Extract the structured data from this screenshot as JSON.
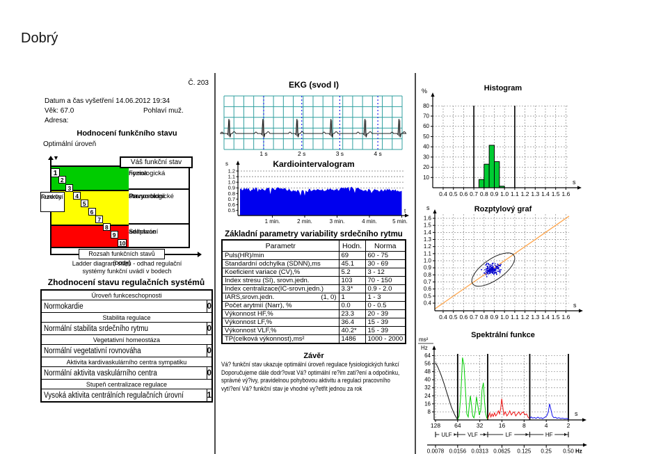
{
  "page": {
    "title": "Dobrý",
    "report_no": "Č. 203"
  },
  "patient": {
    "exam": "Datum a čas vyšetření 14.06.2012 19:34",
    "age": "Věk: 67.0",
    "sex": "Pohlaví muž.",
    "address": "Adresa:"
  },
  "functional": {
    "heading": "Hodnocení funkčního stavu",
    "level": "Optimální úroveň",
    "ladder": {
      "your_state": "Váš funkční stav",
      "zones": [
        {
          "id": "green",
          "color": "#00cc00",
          "lines": [
            "Fyziologická",
            "norma"
          ]
        },
        {
          "id": "yellow",
          "color": "#ffff00",
          "lines": [
            "Prenosologické",
            "stavy",
            "Premorbidní",
            "stavy"
          ]
        },
        {
          "id": "red",
          "color": "#ff0000",
          "lines": [
            "Selhávání",
            "adaptace"
          ]
        }
      ],
      "steps": [
        1,
        2,
        3,
        4,
        5,
        6,
        7,
        8,
        9,
        10
      ],
      "current_step": 1,
      "reserve": [
        "Funkční",
        "rezervy"
      ],
      "axis_box": "Rozsah funkčních stavů (body)",
      "caption": [
        "Ladder diagram států - odhad regulační",
        "systémy funkční uvádí v bodech"
      ]
    }
  },
  "regulation": {
    "heading": "Zhodnocení stavu regulačních systémů",
    "groups": [
      {
        "header": "Úroveň funkceschopnosti",
        "label": "Normokardie",
        "value": "0"
      },
      {
        "header": "Stabilita regulace",
        "label": "Normální stabilita srdečního rytmu",
        "value": "0"
      },
      {
        "header": "Vegetativní homeostáza",
        "label": "Normální vegetativní rovnováha",
        "value": "0"
      },
      {
        "header": "Aktivita kardivaskulárního centra sympatiku",
        "label": "Normální aktivita vaskulárního centra",
        "value": "0"
      },
      {
        "header": "Stupeň centralizace regulace",
        "label": "Vysoká aktivita centrálních regulačních úrovní",
        "value": "1"
      }
    ]
  },
  "parameters": {
    "heading": "Základní parametry variability srdečního rytmu",
    "columns": [
      "Parametr",
      "Hodn.",
      "Norma"
    ],
    "rows": [
      {
        "param": "Puls(HR)/min",
        "value": "69",
        "norm": "60 - 75"
      },
      {
        "param": "Standardní odchylka (SDNN),ms",
        "value": "45.1",
        "norm": "30 - 69"
      },
      {
        "param": "Koeficient variace (CV),%",
        "value": "5.2",
        "norm": "3 - 12"
      },
      {
        "param": "Index stresu (SI), srovn.jedn.",
        "value": "103",
        "norm": "70 - 150"
      },
      {
        "param": "Index centralizace(IC-srovn.jedn.)",
        "value": "3.3*",
        "norm": "0.9 - 2.0"
      },
      {
        "param": "IARS,srovn.jedn.",
        "note": "(1, 0)",
        "value": "1",
        "norm": "1 - 3"
      },
      {
        "param": "Počet arytmií (Narr), %",
        "value": "0.0",
        "norm": "0 - 0.5"
      },
      {
        "param": "Výkonnost HF,%",
        "value": "23.3",
        "norm": "20 - 39"
      },
      {
        "param": "Výkonnost LF,%",
        "value": "36.4",
        "norm": "15 - 39"
      },
      {
        "param": "Výkonnost VLF,%",
        "value": "40.2*",
        "norm": "15 - 39"
      },
      {
        "param": "TP(celková výkonnost),ms²",
        "value": "1486",
        "norm": "1000 - 2000"
      }
    ]
  },
  "conclusion": {
    "heading": "Závěr",
    "lines": [
      "Vá? funkční stav ukazuje optimální úroveň regulace fysiologických funkcí",
      "Doporučujeme dále dodr?ovat Vá? optimální re?im zatí?ení a odpočinku,",
      "správné vý?ivy, pravidelnou pohybovou aktivitu a regulaci pracovního",
      "vytí?ení Vá? funkční stav je vhodné vy?etřit jednou za rok"
    ]
  },
  "chart_data": [
    {
      "id": "ekg",
      "type": "line",
      "title": "EKG (svod I)",
      "x_tick_labels": [
        "1 s",
        "2 s",
        "3 s",
        "4 s"
      ],
      "rr_interval_s": 0.88,
      "beats": 6,
      "grid_color": "#2f9f9f",
      "trace_color": "#222222",
      "second_marker_color": "#2222ee"
    },
    {
      "id": "kardiointervalogram",
      "type": "area",
      "title": "Kardiointervalogram",
      "ylabel": "s",
      "xlabel": "t",
      "y_ticks": [
        "1.2",
        "1.1",
        "1.0",
        "0.9",
        "0.8",
        "0.7",
        "0.6",
        "0.5"
      ],
      "x_tick_labels": [
        "1 min.",
        "2 min.",
        "3 min.",
        "4 min.",
        "5 min."
      ],
      "mean_rr_s": 0.87,
      "rr_range_s": [
        0.76,
        0.96
      ],
      "fill_color": "#0000ee"
    },
    {
      "id": "histogram",
      "type": "bar",
      "title": "Histogram",
      "ylabel": "%",
      "xlabel": "s",
      "x_ticks": [
        "0.4",
        "0.5",
        "0.6",
        "0.7",
        "0.8",
        "0.9",
        "1.0",
        "1.1",
        "1.2",
        "1.3",
        "1.4",
        "1.5",
        "1.6"
      ],
      "y_ticks": [
        10,
        20,
        30,
        40,
        50,
        60,
        70,
        80
      ],
      "bin_width_s": 0.05,
      "bars": [
        {
          "x": 0.75,
          "pct": 8
        },
        {
          "x": 0.8,
          "pct": 23
        },
        {
          "x": 0.85,
          "pct": 41.5
        },
        {
          "x": 0.9,
          "pct": 25.5
        },
        {
          "x": 0.95,
          "pct": 1.5
        }
      ],
      "limit_lines_s": [
        0.7,
        1.1
      ],
      "bar_color": "#00cc33"
    },
    {
      "id": "poincare",
      "type": "scatter",
      "title": "Rozptylový graf",
      "xlabel": "s",
      "ylabel": "s",
      "x_ticks": [
        "0.4",
        "0.5",
        "0.6",
        "0.7",
        "0.8",
        "0.9",
        "1.0",
        "1.1",
        "1.2",
        "1.3",
        "1.4",
        "1.5",
        "1.6"
      ],
      "y_ticks": [
        "1.6",
        "1.5",
        "1.4",
        "1.3",
        "1.2",
        "1.1",
        "1.0",
        "0.9",
        "0.8",
        "0.7",
        "0.6",
        "0.5",
        "0.4"
      ],
      "cluster": {
        "mean_s": 0.872,
        "sd_s": 0.04,
        "n": 135
      },
      "ellipse": {
        "cx_s": 0.89,
        "cy_s": 0.875
      },
      "point_color": "#0000cc",
      "diagonal_color": "#ffa64d"
    },
    {
      "id": "spectral",
      "type": "line",
      "title": "Spektrální funkce",
      "ylabel_num": "ms²",
      "ylabel_den": "Hz",
      "period_unit": "s",
      "freq_unit": "Hz",
      "y_ticks": [
        8,
        16,
        24,
        32,
        40,
        48,
        56,
        64
      ],
      "period_ticks_s": [
        "128",
        "64",
        "32",
        "16",
        "8",
        "4",
        "2"
      ],
      "freq_ticks_hz": [
        "0.0078",
        "0.0156",
        "0.0313",
        "0.0625",
        "0.125",
        "0.25",
        "0.50"
      ],
      "bands": [
        {
          "name": "ULF",
          "from_s": 128,
          "to_s": 64
        },
        {
          "name": "VLF",
          "from_s": 64,
          "to_s": 25
        },
        {
          "name": "LF",
          "from_s": 25,
          "to_s": 6.7
        },
        {
          "name": "HF",
          "from_s": 6.7,
          "to_s": 2
        }
      ],
      "series": [
        {
          "name": "ULF",
          "color": "#111111",
          "points": [
            [
              128,
              57
            ],
            [
              118,
              52
            ],
            [
              108,
              45
            ],
            [
              98,
              36
            ],
            [
              88,
              25
            ],
            [
              78,
              13
            ],
            [
              70,
              5
            ],
            [
              65,
              1
            ],
            [
              64,
              0.5
            ]
          ]
        },
        {
          "name": "VLF",
          "color": "#00cc00",
          "points": [
            [
              64,
              0.5
            ],
            [
              61,
              4
            ],
            [
              58,
              25
            ],
            [
              55,
              62
            ],
            [
              52.5,
              55
            ],
            [
              50,
              28
            ],
            [
              48,
              6
            ],
            [
              46,
              3
            ],
            [
              44.5,
              14
            ],
            [
              43,
              24
            ],
            [
              41.5,
              15
            ],
            [
              40,
              4
            ],
            [
              38.5,
              2
            ],
            [
              37,
              8
            ],
            [
              35.5,
              23
            ],
            [
              34,
              14
            ],
            [
              32.5,
              5
            ],
            [
              31,
              10
            ],
            [
              29.8,
              30
            ],
            [
              28.6,
              37
            ],
            [
              27.6,
              18
            ],
            [
              26.6,
              6
            ],
            [
              25.7,
              2
            ],
            [
              25,
              0.8
            ]
          ]
        },
        {
          "name": "LF",
          "color": "#ee1111",
          "points": [
            [
              25,
              0.8
            ],
            [
              24.2,
              4
            ],
            [
              23.4,
              7
            ],
            [
              22.6,
              3
            ],
            [
              21.8,
              6
            ],
            [
              21,
              3.5
            ],
            [
              20.2,
              7
            ],
            [
              19.4,
              4
            ],
            [
              18.6,
              6
            ],
            [
              17.9,
              9
            ],
            [
              17.2,
              6
            ],
            [
              16.6,
              12
            ],
            [
              16.1,
              21
            ],
            [
              15.6,
              13
            ],
            [
              15.1,
              5
            ],
            [
              14.4,
              8
            ],
            [
              13.7,
              4
            ],
            [
              13.1,
              6
            ],
            [
              12.5,
              9
            ],
            [
              11.9,
              5
            ],
            [
              11.4,
              7
            ],
            [
              10.9,
              8
            ],
            [
              10.4,
              4
            ],
            [
              9.9,
              6
            ],
            [
              9.4,
              8
            ],
            [
              9,
              5
            ],
            [
              8.6,
              7
            ],
            [
              8.2,
              8
            ],
            [
              7.8,
              5
            ],
            [
              7.4,
              6
            ],
            [
              7.1,
              3
            ],
            [
              6.8,
              1.5
            ]
          ]
        },
        {
          "name": "HF",
          "color": "#1111ee",
          "points": [
            [
              6.7,
              1.5
            ],
            [
              6.4,
              3
            ],
            [
              6.1,
              1.8
            ],
            [
              5.8,
              2.5
            ],
            [
              5.5,
              1.5
            ],
            [
              5.2,
              2.8
            ],
            [
              4.9,
              1.6
            ],
            [
              4.7,
              2.2
            ],
            [
              4.5,
              1.4
            ],
            [
              4.3,
              2
            ],
            [
              4.1,
              3
            ],
            [
              3.9,
              4.5
            ],
            [
              3.75,
              8
            ],
            [
              3.6,
              16
            ],
            [
              3.45,
              10
            ],
            [
              3.3,
              4
            ],
            [
              3.15,
              2.2
            ],
            [
              3,
              2.6
            ],
            [
              2.85,
              1.6
            ],
            [
              2.7,
              2.2
            ],
            [
              2.55,
              1.4
            ],
            [
              2.4,
              1.8
            ],
            [
              2.25,
              1.2
            ],
            [
              2.1,
              1.5
            ],
            [
              2,
              0.6
            ]
          ]
        }
      ]
    }
  ]
}
